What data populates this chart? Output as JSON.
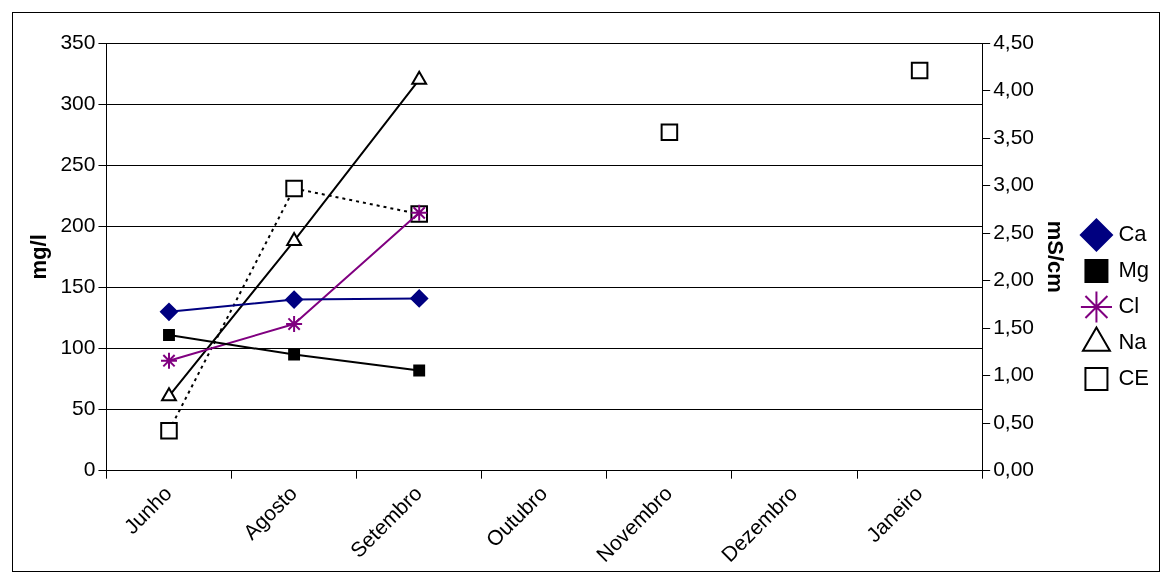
{
  "chart_data": {
    "type": "line",
    "categories": [
      "Junho",
      "Agosto",
      "Setembro",
      "Outubro",
      "Novembro",
      "Dezembro",
      "Janeiro"
    ],
    "ylabel": "mg/l",
    "y2label": "mS/cm",
    "ylim": [
      0,
      350
    ],
    "yticks": [
      0,
      50,
      100,
      150,
      200,
      250,
      300,
      350
    ],
    "y2lim": [
      0,
      4.5
    ],
    "y2ticks": [
      {
        "value": 0,
        "label": "0,00"
      },
      {
        "value": 0.5,
        "label": "0,50"
      },
      {
        "value": 1,
        "label": "1,00"
      },
      {
        "value": 1.5,
        "label": "1,50"
      },
      {
        "value": 2,
        "label": "2,00"
      },
      {
        "value": 2.5,
        "label": "2,50"
      },
      {
        "value": 3,
        "label": "3,00"
      },
      {
        "value": 3.5,
        "label": "3,50"
      },
      {
        "value": 4,
        "label": "4,00"
      },
      {
        "value": 4.5,
        "label": "4,50"
      }
    ],
    "grid": "y",
    "legend": "right",
    "series": [
      {
        "name": "Ca",
        "color": "#000080",
        "marker": "diamond",
        "values": [
          130,
          140,
          141,
          null,
          null,
          null,
          null
        ]
      },
      {
        "name": "Mg",
        "color": "#000000",
        "marker": "square",
        "values": [
          111,
          95,
          82,
          null,
          null,
          null,
          null
        ]
      },
      {
        "name": "Cl",
        "color": "#800080",
        "marker": "cross",
        "values": [
          90,
          120,
          211,
          null,
          null,
          null,
          null
        ]
      },
      {
        "name": "Na",
        "color": "#000000",
        "marker": "triangle",
        "values": [
          61,
          188,
          320,
          null,
          null,
          null,
          null
        ]
      },
      {
        "name": "CE",
        "color": "#000000",
        "marker": "square",
        "line_style": "dotted",
        "axis": "y2",
        "values": [
          0.42,
          2.97,
          2.7,
          null,
          3.56,
          null,
          4.21
        ]
      }
    ]
  }
}
